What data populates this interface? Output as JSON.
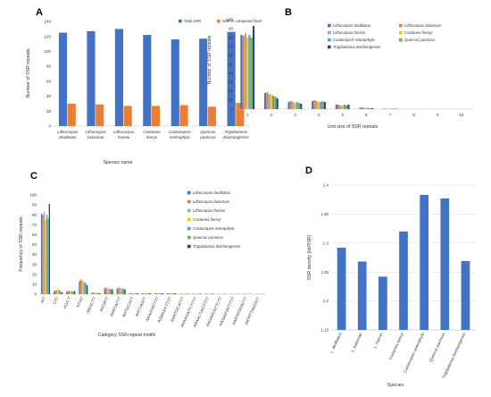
{
  "panels": {
    "A": {
      "letter": "A",
      "chart_data": {
        "type": "bar",
        "categories": [
          "Lithocarpus dealbatus",
          "Lithocarpus balansae",
          "Lithocarpus hancei",
          "Castanea henryi",
          "Castanopsis sclerophyla",
          "Quercus pannosa",
          "Trigobalanus doichangensis"
        ],
        "series": [
          {
            "name": "Total SSR",
            "values": [
              125,
              127,
              130,
              122,
              116,
              117,
              126
            ],
            "color": "#4472C4"
          },
          {
            "name": "SSR in compound form",
            "values": [
              30,
              29,
              27,
              27,
              28,
              26,
              31
            ],
            "color": "#ED7D31"
          }
        ],
        "xlabel": "Species name",
        "ylabel": "Number  of  SSR repeats",
        "ylim": [
          0,
          140
        ],
        "yticks": [
          0,
          20,
          40,
          60,
          80,
          100,
          120,
          140
        ],
        "legend": "top-right"
      }
    },
    "B": {
      "letter": "B",
      "chart_data": {
        "type": "bar",
        "categories": [
          "1",
          "2",
          "3",
          "4",
          "5",
          "6",
          "7",
          "8",
          "9",
          "10"
        ],
        "series": [
          {
            "name": "Lithocarpus dealbatus",
            "values": [
              83,
              18,
              8,
              9,
              5,
              1.5,
              0.5,
              0,
              0,
              0
            ],
            "color": "#4472C4"
          },
          {
            "name": "Lithocarpus balansae",
            "values": [
              82,
              19,
              9,
              10,
              5,
              2,
              0.5,
              0,
              0,
              0
            ],
            "color": "#ED7D31"
          },
          {
            "name": "Lithocarpus hancei",
            "values": [
              85,
              17,
              8,
              9,
              4,
              1.5,
              0.5,
              0,
              0,
              0
            ],
            "color": "#A5A5A5"
          },
          {
            "name": "Castanea henryi",
            "values": [
              80,
              16,
              7,
              8,
              4,
              1,
              0.5,
              0,
              0,
              0
            ],
            "color": "#FFC000"
          },
          {
            "name": "Castanopsis sclerophyla",
            "values": [
              83,
              15,
              8,
              8,
              5,
              1.5,
              0.5,
              0,
              0,
              0
            ],
            "color": "#5B9BD5"
          },
          {
            "name": "Quercus pannosa",
            "values": [
              80,
              14,
              7,
              9,
              4,
              1,
              0.5,
              0,
              0,
              0
            ],
            "color": "#70AD47"
          },
          {
            "name": "Trigobalanus doichangensis",
            "values": [
              93,
              12,
              6,
              8,
              5,
              1,
              0.5,
              0,
              0,
              0
            ],
            "color": "#264478"
          }
        ],
        "xlabel": "Unit size of SSR repeats",
        "ylabel": "Number of SSR repeats",
        "ylim": [
          0,
          100
        ],
        "yticks": [
          0,
          10,
          20,
          30,
          40,
          50,
          60,
          70,
          80,
          90,
          100
        ],
        "legend": "top-right"
      }
    },
    "C": {
      "letter": "C",
      "chart_data": {
        "type": "bar",
        "categories": [
          "A/T",
          "C/G",
          "AG/CT",
          "AT/AT",
          "AAG/CTT",
          "AAT/ATT",
          "AAAT/ATTT",
          "AATG/CATT",
          "AATT/AATT",
          "AAAAT/ATTTT",
          "AAAAG/CTTTT",
          "AAATG/CATTT",
          "AAAAGA/TCTTTT",
          "AAAACT/AGTTTT",
          "AAGAAT/ATTCTT",
          "AAAAAT/ATTTTT",
          "AAATAT/ATATTT",
          "AATATT/AATATT"
        ],
        "series": [
          {
            "name": "Lithocarpus dealbatus",
            "values": [
              81,
              3,
              3,
              13,
              1.5,
              6,
              6,
              1,
              1,
              1,
              1,
              0.5,
              0.5,
              0.5,
              0.3,
              0.3,
              0.3,
              0.3
            ],
            "color": "#4472C4"
          },
          {
            "name": "Lithocarpus balansae",
            "values": [
              80,
              4,
              3,
              15,
              1.5,
              7,
              6,
              1,
              1,
              1,
              1,
              0.5,
              0.5,
              0.5,
              0.3,
              0.3,
              0.3,
              0.3
            ],
            "color": "#ED7D31"
          },
          {
            "name": "Lithocarpus hancei",
            "values": [
              83,
              4,
              4,
              14,
              1.5,
              6,
              7,
              1,
              1,
              1,
              1,
              0.5,
              0.5,
              0.5,
              0.3,
              0.3,
              0.3,
              0.3
            ],
            "color": "#A5A5A5"
          },
          {
            "name": "Castanea henryi",
            "values": [
              75,
              6,
              3,
              13,
              1.5,
              5,
              6,
              1,
              1,
              1,
              1,
              0.5,
              0.5,
              0.5,
              0.3,
              0.3,
              0.3,
              0.3
            ],
            "color": "#FFC000"
          },
          {
            "name": "Castanopsis sclerophyla",
            "values": [
              80,
              4,
              3,
              12,
              1.5,
              6,
              6,
              1,
              1,
              1,
              1,
              0.5,
              0.5,
              0.5,
              0.3,
              0.3,
              0.3,
              0.3
            ],
            "color": "#5B9BD5"
          },
          {
            "name": "Quercus pannosa",
            "values": [
              76,
              3,
              3,
              11,
              1,
              5,
              5,
              1,
              1,
              1,
              1,
              0.5,
              0.5,
              0.5,
              0.3,
              0.3,
              0.3,
              0.3
            ],
            "color": "#70AD47"
          },
          {
            "name": "Trigobalanus doichangensis",
            "values": [
              91,
              2,
              3,
              9,
              1,
              5,
              5,
              1,
              1,
              1,
              1,
              0.5,
              0.5,
              0.5,
              0.3,
              0.3,
              0.3,
              0.3
            ],
            "color": "#264478"
          }
        ],
        "xlabel": "Category SSR repeat motifs",
        "ylabel": "Frequency of SSR repeats",
        "ylim": [
          0,
          100
        ],
        "yticks": [
          0,
          10,
          20,
          30,
          40,
          50,
          60,
          70,
          80,
          90,
          100
        ],
        "legend": "top-right"
      }
    },
    "D": {
      "letter": "D",
      "chart_data": {
        "type": "bar",
        "categories": [
          "L. dealbatus",
          "L. balansae",
          "L. hancei",
          "Castanea henryi",
          "Castanopsis sclerophyla",
          "Quercus pannosa",
          "Trigobalanus doichangensis"
        ],
        "series": [
          {
            "values": [
              1.292,
              1.268,
              1.242,
              1.32,
              1.383,
              1.377,
              1.269
            ],
            "color": "#4472C4"
          }
        ],
        "xlabel": "Species",
        "ylabel": "SSR density (kb/SSR)",
        "ylim": [
          1.15,
          1.4
        ],
        "yticks": [
          1.15,
          1.2,
          1.25,
          1.3,
          1.35,
          1.4
        ]
      }
    }
  }
}
